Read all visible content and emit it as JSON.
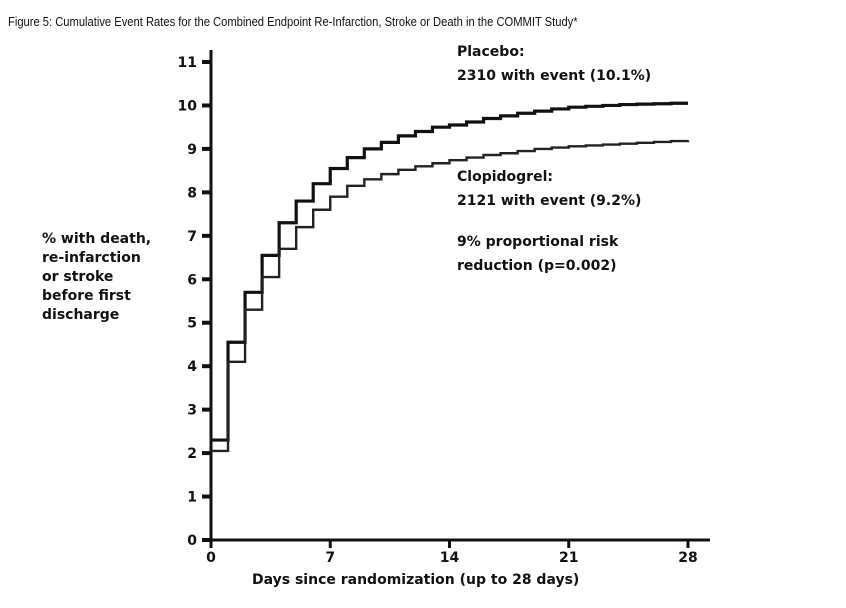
{
  "chart_data": {
    "type": "line",
    "subtype": "step",
    "title": "Figure 5: Cumulative Event Rates for the Combined Endpoint Re-Infarction, Stroke or Death in the COMMIT Study*",
    "xlabel": "Days since randomization (up to 28 days)",
    "ylabel": [
      "% with death,",
      "re-infarction",
      "or stroke",
      "before first",
      "discharge"
    ],
    "xlim": [
      0,
      28
    ],
    "ylim": [
      0,
      11
    ],
    "xticks": [
      "0",
      "7",
      "14",
      "21",
      "28"
    ],
    "yticks": [
      "0",
      "1",
      "2",
      "3",
      "4",
      "5",
      "6",
      "7",
      "8",
      "9",
      "10",
      "11"
    ],
    "x": [
      0,
      1,
      2,
      3,
      4,
      5,
      6,
      7,
      8,
      9,
      10,
      11,
      12,
      13,
      14,
      15,
      16,
      17,
      18,
      19,
      20,
      21,
      22,
      23,
      24,
      25,
      26,
      27,
      28
    ],
    "series": [
      {
        "name": "Placebo",
        "values": [
          2.3,
          4.55,
          5.7,
          6.55,
          7.3,
          7.8,
          8.2,
          8.55,
          8.8,
          9.0,
          9.15,
          9.3,
          9.4,
          9.5,
          9.55,
          9.62,
          9.7,
          9.76,
          9.82,
          9.87,
          9.92,
          9.96,
          9.98,
          10.0,
          10.02,
          10.03,
          10.04,
          10.05,
          10.05
        ]
      },
      {
        "name": "Clopidogrel",
        "values": [
          2.05,
          4.1,
          5.3,
          6.05,
          6.7,
          7.2,
          7.6,
          7.9,
          8.15,
          8.3,
          8.42,
          8.52,
          8.6,
          8.67,
          8.74,
          8.8,
          8.86,
          8.9,
          8.95,
          9.0,
          9.03,
          9.06,
          9.08,
          9.1,
          9.12,
          9.14,
          9.16,
          9.18,
          9.2
        ]
      }
    ],
    "annotations": {
      "placebo": [
        "Placebo:",
        "2310 with event (10.1%)"
      ],
      "clopidogrel": [
        "Clopidogrel:",
        "2121 with event (9.2%)"
      ],
      "risk": [
        "9% proportional risk",
        "reduction (p=0.002)"
      ]
    },
    "grid": false
  }
}
